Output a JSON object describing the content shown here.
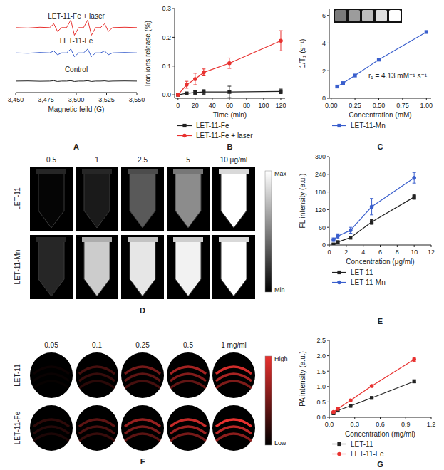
{
  "chart_data": [
    {
      "type": "line",
      "label": "A",
      "xlabel": "Magnetic feild (G)",
      "tick_labels": "x",
      "x": [
        3450,
        3460,
        3470,
        3478,
        3481.5,
        3484.5,
        3488,
        3492,
        3495.5,
        3498.5,
        3502,
        3506,
        3509.5,
        3512.5,
        3516,
        3520,
        3523.5,
        3526.5,
        3530,
        3540,
        3550
      ],
      "xlim": [
        3450,
        3550
      ],
      "ylim": [
        0,
        11
      ],
      "xticks": [
        {
          "value": 3450,
          "label": "3,450"
        },
        {
          "value": 3475,
          "label": "3,475"
        },
        {
          "value": 3500,
          "label": "3,500"
        },
        {
          "value": 3525,
          "label": "3,525"
        },
        {
          "value": 3550,
          "label": "3,550"
        }
      ],
      "series": [
        {
          "name": "LET-11-Fe + laser",
          "color": "#e8312f",
          "values": [
            8.5,
            8.45,
            8.55,
            8.5,
            9.0,
            8.0,
            8.5,
            8.5,
            9.5,
            7.5,
            8.5,
            8.5,
            9.5,
            7.5,
            8.5,
            8.5,
            9.0,
            8.0,
            8.5,
            8.55,
            8.5
          ]
        },
        {
          "name": "LET-11-Fe",
          "color": "#3a5fcd",
          "values": [
            5.2,
            5.15,
            5.25,
            5.2,
            5.45,
            4.95,
            5.2,
            5.2,
            5.7,
            4.7,
            5.2,
            5.2,
            5.7,
            4.7,
            5.2,
            5.2,
            5.45,
            4.95,
            5.2,
            5.25,
            5.2
          ]
        },
        {
          "name": "Control",
          "color": "#222222",
          "values": [
            1.5,
            1.52,
            1.48,
            1.5,
            1.55,
            1.45,
            1.5,
            1.5,
            1.55,
            1.45,
            1.5,
            1.5,
            1.55,
            1.45,
            1.5,
            1.5,
            1.53,
            1.47,
            1.5,
            1.52,
            1.5
          ]
        }
      ]
    },
    {
      "type": "line",
      "label": "B",
      "xlabel": "Time (min)",
      "ylabel": "Iron ions release (%)",
      "x": [
        0,
        10,
        20,
        30,
        60,
        120
      ],
      "xlim": [
        -4,
        125
      ],
      "ylim": [
        -0.012,
        0.3
      ],
      "xticks": [
        0,
        20,
        40,
        60,
        80,
        100,
        120
      ],
      "yticks": [
        {
          "value": 0,
          "label": "0.0"
        },
        0.1,
        0.2,
        0.3
      ],
      "series": [
        {
          "name": "LET-11-Fe",
          "color": "#222222",
          "marker": "square",
          "values": [
            0,
            0.005,
            0.008,
            0.01,
            0.01,
            0.012
          ],
          "errors": [
            0.002,
            0.004,
            0.006,
            0.008,
            0.02,
            0.008
          ]
        },
        {
          "name": "LET-11-Fe + laser",
          "color": "#e8312f",
          "marker": "circle",
          "values": [
            0,
            0.035,
            0.055,
            0.078,
            0.11,
            0.188
          ],
          "errors": [
            0.003,
            0.012,
            0.02,
            0.012,
            0.018,
            0.035
          ]
        }
      ]
    },
    {
      "type": "line",
      "label": "C",
      "xlabel": "Concentration (mM)",
      "ylabel": "1/T₁ (s⁻¹)",
      "annotation": "r₁ = 4.13 mM⁻¹ s⁻¹",
      "x": [
        0.0625,
        0.125,
        0.25,
        0.5,
        1
      ],
      "xlim": [
        -0.02,
        1.05
      ],
      "ylim": [
        0,
        6.5
      ],
      "xticks": [
        {
          "value": 0,
          "label": "0.00"
        },
        0.25,
        {
          "value": 0.5,
          "label": "0.50"
        },
        0.75,
        {
          "value": 1,
          "label": "1.00"
        }
      ],
      "yticks": [
        0,
        2,
        4,
        6
      ],
      "series": [
        {
          "name": "LET-11-Mn",
          "color": "#3a5fcd",
          "marker": "square",
          "values": [
            0.85,
            1.1,
            1.65,
            2.8,
            4.8
          ]
        }
      ]
    },
    {
      "type": "image_grid",
      "label": "D",
      "columns": [
        "0.5",
        "1",
        "2.5",
        "5",
        "10 μg/ml"
      ],
      "rows": [
        "LET-11",
        "LET-11-Mn"
      ],
      "cells": [
        [
          0.02,
          0.1,
          0.35,
          0.55,
          1
        ],
        [
          0.15,
          0.8,
          0.9,
          0.95,
          1
        ]
      ],
      "zlim": [
        0,
        1
      ],
      "colorbar_labels": [
        "Max",
        "Min"
      ],
      "color": "#ffffff"
    },
    {
      "type": "line",
      "label": "E",
      "xlabel": "Concentration (μg/ml)",
      "ylabel": "FL intensity (a.u.)",
      "x": [
        0.5,
        1,
        2.5,
        5,
        10
      ],
      "xlim": [
        0,
        12
      ],
      "ylim": [
        0,
        300
      ],
      "xticks": [
        0,
        2,
        4,
        6,
        8,
        10,
        12
      ],
      "yticks": [
        0,
        60,
        120,
        180,
        240,
        300
      ],
      "series": [
        {
          "name": "LET-11",
          "color": "#222222",
          "marker": "square",
          "values": [
            2,
            10,
            25,
            78,
            163
          ],
          "errors": [
            3,
            3,
            5,
            8,
            8
          ]
        },
        {
          "name": "LET-11-Mn",
          "color": "#3a5fcd",
          "marker": "circle",
          "values": [
            18,
            30,
            50,
            130,
            228
          ],
          "errors": [
            6,
            8,
            10,
            28,
            18
          ]
        }
      ]
    },
    {
      "type": "image_grid",
      "label": "F",
      "columns": [
        "0.05",
        "0.1",
        "0.25",
        "0.5",
        "1 mg/ml"
      ],
      "rows": [
        "LET-11",
        "LET-11-Fe"
      ],
      "cells": [
        [
          0.05,
          0.3,
          0.5,
          0.7,
          0.9
        ],
        [
          0.2,
          0.4,
          0.65,
          0.85,
          1
        ]
      ],
      "zlim": [
        0,
        1
      ],
      "colorbar_labels": [
        "High",
        "Low"
      ],
      "color": "#e8312f"
    },
    {
      "type": "line",
      "label": "G",
      "xlabel": "Concentration (mg/ml)",
      "ylabel": "PA intensity (a.u.)",
      "x": [
        0.05,
        0.1,
        0.25,
        0.5,
        1
      ],
      "xlim": [
        0,
        1.2
      ],
      "ylim": [
        0,
        2.5
      ],
      "xticks": [
        {
          "value": 0,
          "label": "0.0"
        },
        0.3,
        0.6,
        0.9,
        1.2
      ],
      "yticks": [
        {
          "value": 0,
          "label": "0.0"
        },
        0.5,
        {
          "value": 1,
          "label": "1.0"
        },
        1.5,
        {
          "value": 2,
          "label": "2.0"
        },
        2.5
      ],
      "series": [
        {
          "name": "LET-11",
          "color": "#222222",
          "marker": "square",
          "values": [
            0.13,
            0.22,
            0.37,
            0.63,
            1.17
          ],
          "errors": [
            0.02,
            0.02,
            0.02,
            0.04,
            0.05
          ]
        },
        {
          "name": "LET-11-Fe",
          "color": "#e8312f",
          "marker": "circle",
          "values": [
            0.17,
            0.28,
            0.55,
            1.02,
            1.88
          ],
          "errors": [
            0.02,
            0.02,
            0.02,
            0.02,
            0.06
          ]
        }
      ]
    }
  ]
}
